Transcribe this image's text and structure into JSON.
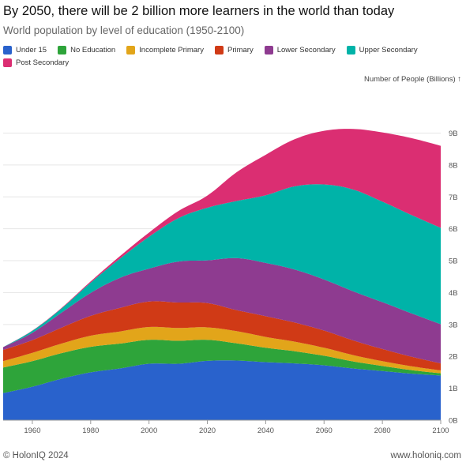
{
  "header": {
    "title": "By 2050, there will be 2 billion more learners in the world than today",
    "subtitle": "World population by level of education (1950-2100)"
  },
  "footer": {
    "copyright": "© HolonIQ 2024",
    "website": "www.holoniq.com"
  },
  "chart_data": {
    "type": "area",
    "stacked": true,
    "y_axis_title": "Number of People (Billions) ↑",
    "xlim": [
      1950,
      2100
    ],
    "ylim": [
      0,
      10.2
    ],
    "x_ticks": [
      1960,
      1980,
      2000,
      2020,
      2040,
      2060,
      2080,
      2100
    ],
    "y_ticks": [
      0,
      1,
      2,
      3,
      4,
      5,
      6,
      7,
      8,
      9
    ],
    "y_tick_labels": [
      "0B",
      "1B",
      "2B",
      "3B",
      "4B",
      "5B",
      "6B",
      "7B",
      "8B",
      "9B"
    ],
    "y_axis_side": "right",
    "legend_position": "top",
    "grid": "horizontal",
    "x": [
      1950,
      1960,
      1970,
      1980,
      1990,
      2000,
      2010,
      2020,
      2030,
      2040,
      2050,
      2060,
      2070,
      2080,
      2090,
      2100
    ],
    "series": [
      {
        "name": "Under 15",
        "color": "#2962cc",
        "values": [
          0.85,
          1.05,
          1.3,
          1.5,
          1.62,
          1.77,
          1.77,
          1.86,
          1.87,
          1.82,
          1.78,
          1.72,
          1.62,
          1.54,
          1.46,
          1.4
        ]
      },
      {
        "name": "No Education",
        "color": "#2ea43a",
        "values": [
          0.8,
          0.8,
          0.8,
          0.8,
          0.78,
          0.75,
          0.72,
          0.66,
          0.54,
          0.45,
          0.38,
          0.3,
          0.22,
          0.16,
          0.11,
          0.07
        ]
      },
      {
        "name": "Incomplete Primary",
        "color": "#e2a51a",
        "values": [
          0.2,
          0.26,
          0.3,
          0.35,
          0.38,
          0.4,
          0.4,
          0.39,
          0.38,
          0.34,
          0.3,
          0.25,
          0.2,
          0.15,
          0.12,
          0.09
        ]
      },
      {
        "name": "Primary",
        "color": "#d03a16",
        "values": [
          0.35,
          0.4,
          0.5,
          0.62,
          0.74,
          0.8,
          0.8,
          0.76,
          0.66,
          0.65,
          0.6,
          0.54,
          0.46,
          0.38,
          0.3,
          0.22
        ]
      },
      {
        "name": "Lower Secondary",
        "color": "#8e3b90",
        "values": [
          0.09,
          0.23,
          0.47,
          0.72,
          0.94,
          1.03,
          1.28,
          1.34,
          1.63,
          1.67,
          1.66,
          1.6,
          1.54,
          1.47,
          1.36,
          1.23
        ]
      },
      {
        "name": "Upper Secondary",
        "color": "#00b3a8",
        "values": [
          0.0,
          0.06,
          0.13,
          0.32,
          0.6,
          1.0,
          1.36,
          1.65,
          1.79,
          2.12,
          2.61,
          2.98,
          3.19,
          3.15,
          3.08,
          3.02
        ]
      },
      {
        "name": "Post Secondary",
        "color": "#db2e72",
        "values": [
          0.0,
          0.01,
          0.02,
          0.04,
          0.08,
          0.13,
          0.22,
          0.38,
          0.9,
          1.27,
          1.48,
          1.68,
          1.9,
          2.17,
          2.41,
          2.57
        ]
      }
    ]
  }
}
